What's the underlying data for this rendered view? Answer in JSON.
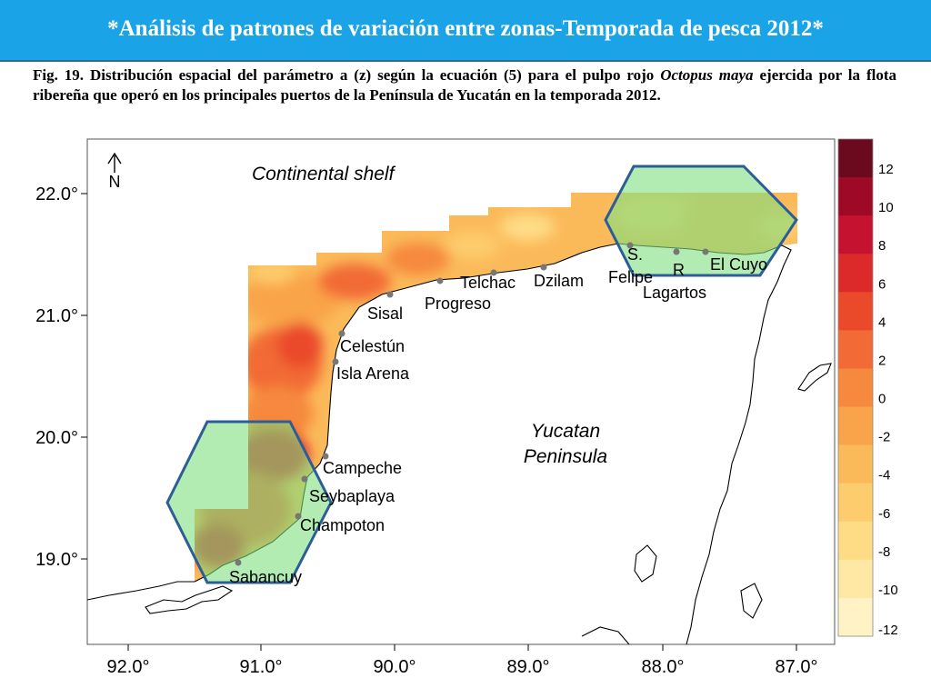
{
  "slide": {
    "title": "*Análisis de patrones de variación entre zonas-Temporada de pesca 2012*"
  },
  "caption": {
    "part1": "Fig. 19. Distribución espacial del parámetro a (z) según la ecuación (5) para el pulpo rojo ",
    "species": "Octopus maya",
    "part2": " ejercida por la flota ribereña que operó en los principales puertos de la Península de Yucatán en la temporada 2012."
  },
  "map": {
    "x_ticks": [
      "92.0°",
      "91.0°",
      "90.0°",
      "89.0°",
      "88.0°",
      "87.0°"
    ],
    "y_ticks": [
      "22.0°",
      "21.0°",
      "20.0°",
      "19.0°"
    ],
    "north_label": "N",
    "regions": {
      "shelf": "Continental shelf",
      "peninsula_line1": "Yucatan",
      "peninsula_line2": "Peninsula"
    },
    "towns": {
      "sisal": "Sisal",
      "progreso": "Progreso",
      "telchac": "Telchac",
      "dzilam": "Dzilam",
      "s_felipe_1": "S.",
      "s_felipe_2": "Felipe",
      "r_lagartos_1": "R",
      "r_lagartos_2": "Lagartos",
      "el_cuyo": "El Cuyo",
      "celestun": "Celestún",
      "isla_arena": "Isla Arena",
      "campeche": "Campeche",
      "seybaplaya": "Seybaplaya",
      "champoton": "Champoton",
      "sabancuy": "Sabancuy"
    },
    "legend": {
      "labels": [
        "12",
        "10",
        "8",
        "6",
        "4",
        "2",
        "0",
        "-2",
        "-4",
        "-6",
        "-8",
        "-10",
        "-12"
      ],
      "colors": [
        "#6b0a1e",
        "#9e0a26",
        "#c41230",
        "#dc2a2a",
        "#ea4a2a",
        "#f26a36",
        "#f6893e",
        "#f9a44a",
        "#fbba5a",
        "#fdcc6c",
        "#fedc85",
        "#ffe8a4",
        "#fff3c6"
      ]
    },
    "colors": {
      "highlight_fill": "#7ee07e",
      "highlight_stroke": "#2d5d99",
      "header": "#1aa3e6"
    }
  }
}
